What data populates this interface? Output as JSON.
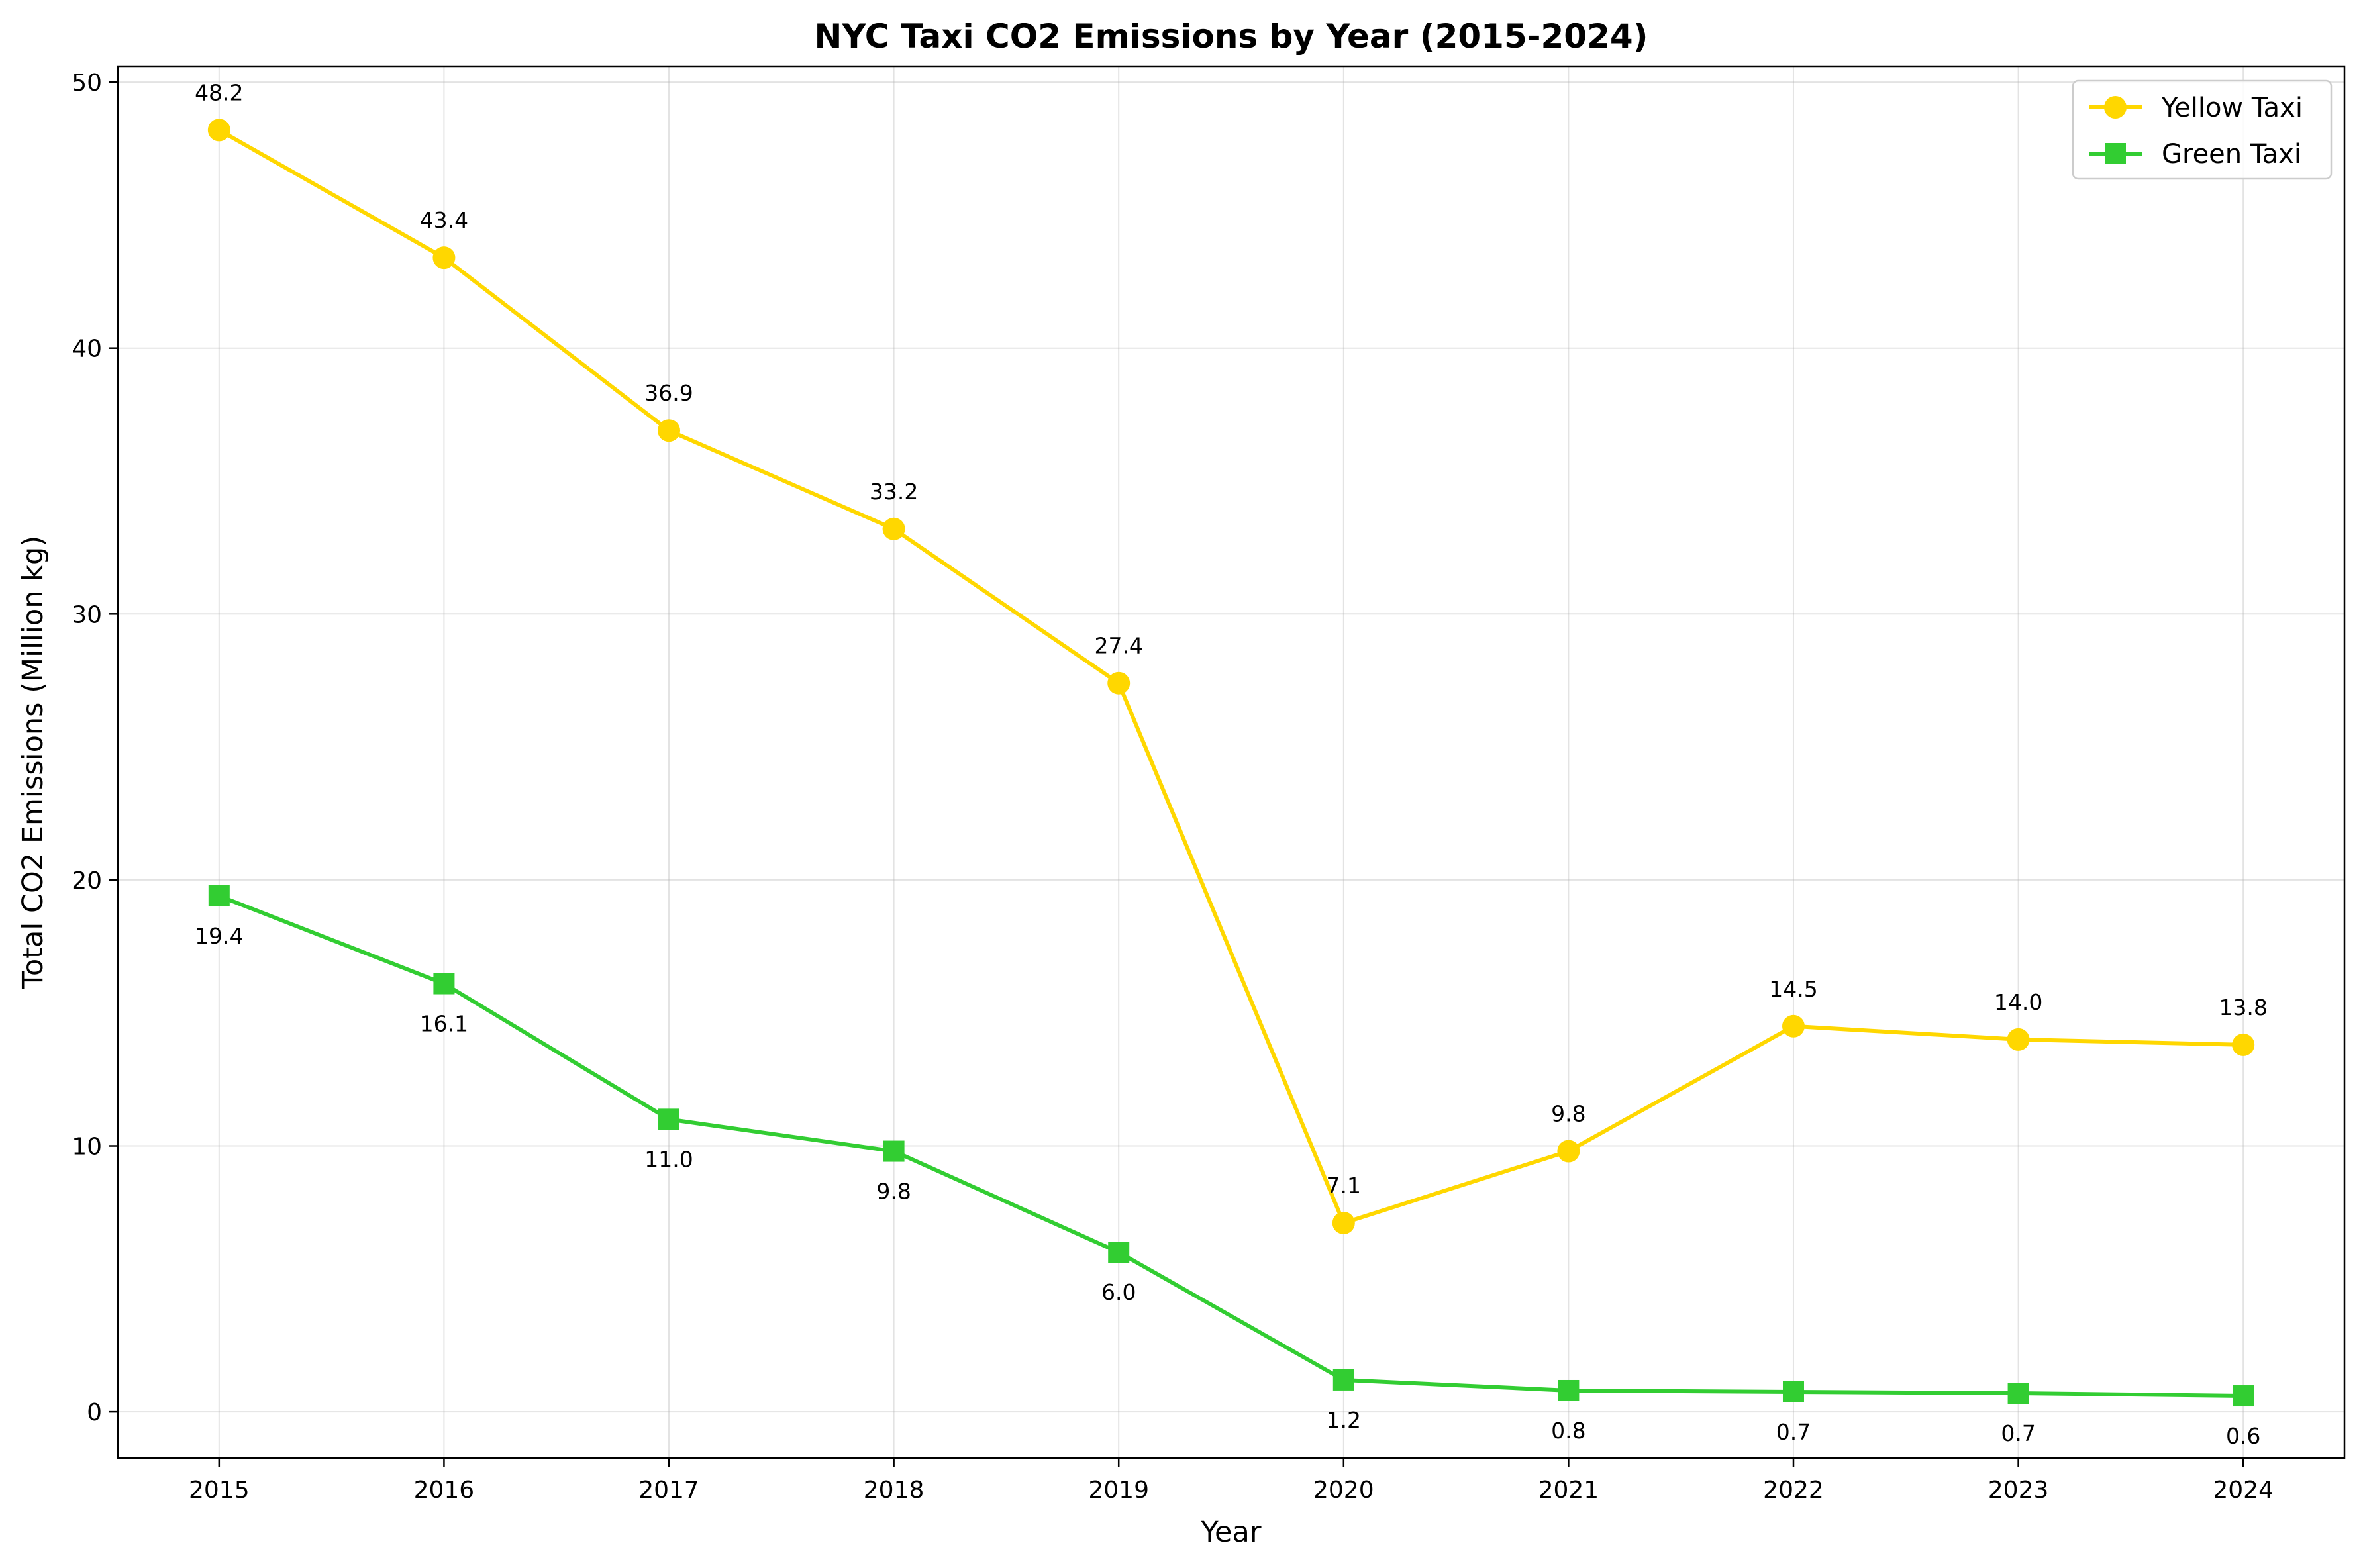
{
  "chart_data": {
    "type": "line",
    "title": "NYC Taxi CO2 Emissions by Year (2015-2024)",
    "xlabel": "Year",
    "ylabel": "Total CO2 Emissions (Million kg)",
    "x": [
      "2015",
      "2016",
      "2017",
      "2018",
      "2019",
      "2020",
      "2021",
      "2022",
      "2023",
      "2024"
    ],
    "series": [
      {
        "name": "Yellow Taxi",
        "color": "#FFD700",
        "marker": "circle",
        "values": [
          48.2,
          43.4,
          36.9,
          33.2,
          27.4,
          7.1,
          9.8,
          14.5,
          14.0,
          13.8
        ],
        "labels": [
          "48.2",
          "43.4",
          "36.9",
          "33.2",
          "27.4",
          "7.1",
          "9.8",
          "14.5",
          "14.0",
          "13.8"
        ],
        "label_position": "above"
      },
      {
        "name": "Green Taxi",
        "color": "#32CD32",
        "marker": "square",
        "values": [
          19.4,
          16.1,
          11.0,
          9.8,
          6.0,
          1.2,
          0.8,
          0.75,
          0.7,
          0.6
        ],
        "labels": [
          "19.4",
          "16.1",
          "11.0",
          "9.8",
          "6.0",
          "1.2",
          "0.8",
          "0.7",
          "0.7",
          "0.6"
        ],
        "label_position": "below"
      }
    ],
    "yticks": [
      0,
      10,
      20,
      30,
      40,
      50
    ],
    "ylim": [
      -1.74,
      50.6
    ],
    "xlim": [
      2014.55,
      2024.45
    ],
    "grid": true,
    "legend": "top-right"
  }
}
